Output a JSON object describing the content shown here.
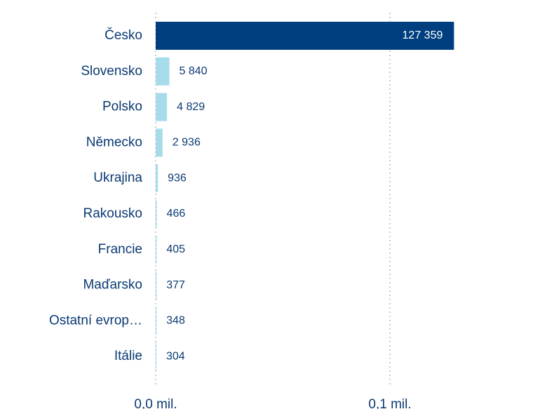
{
  "chart_data": {
    "type": "bar",
    "orientation": "horizontal",
    "categories": [
      "Česko",
      "Slovensko",
      "Polsko",
      "Německo",
      "Ukrajina",
      "Rakousko",
      "Francie",
      "Maďarsko",
      "Ostatní evrop…",
      "Itálie"
    ],
    "values": [
      127359,
      5840,
      4829,
      2936,
      936,
      466,
      405,
      377,
      348,
      304
    ],
    "value_labels": [
      "127 359",
      "5 840",
      "4 829",
      "2 936",
      "936",
      "466",
      "405",
      "377",
      "348",
      "304"
    ],
    "colors": [
      "#003f7f",
      "#a6dcea",
      "#a6dcea",
      "#a6dcea",
      "#a6dcea",
      "#a6dcea",
      "#a6dcea",
      "#a6dcea",
      "#a6dcea",
      "#a6dcea"
    ],
    "xlim": [
      0,
      160000
    ],
    "xticks": [
      {
        "value": 0,
        "label": "0,0 mil."
      },
      {
        "value": 100000,
        "label": "0,1 mil."
      }
    ],
    "grid": true
  }
}
